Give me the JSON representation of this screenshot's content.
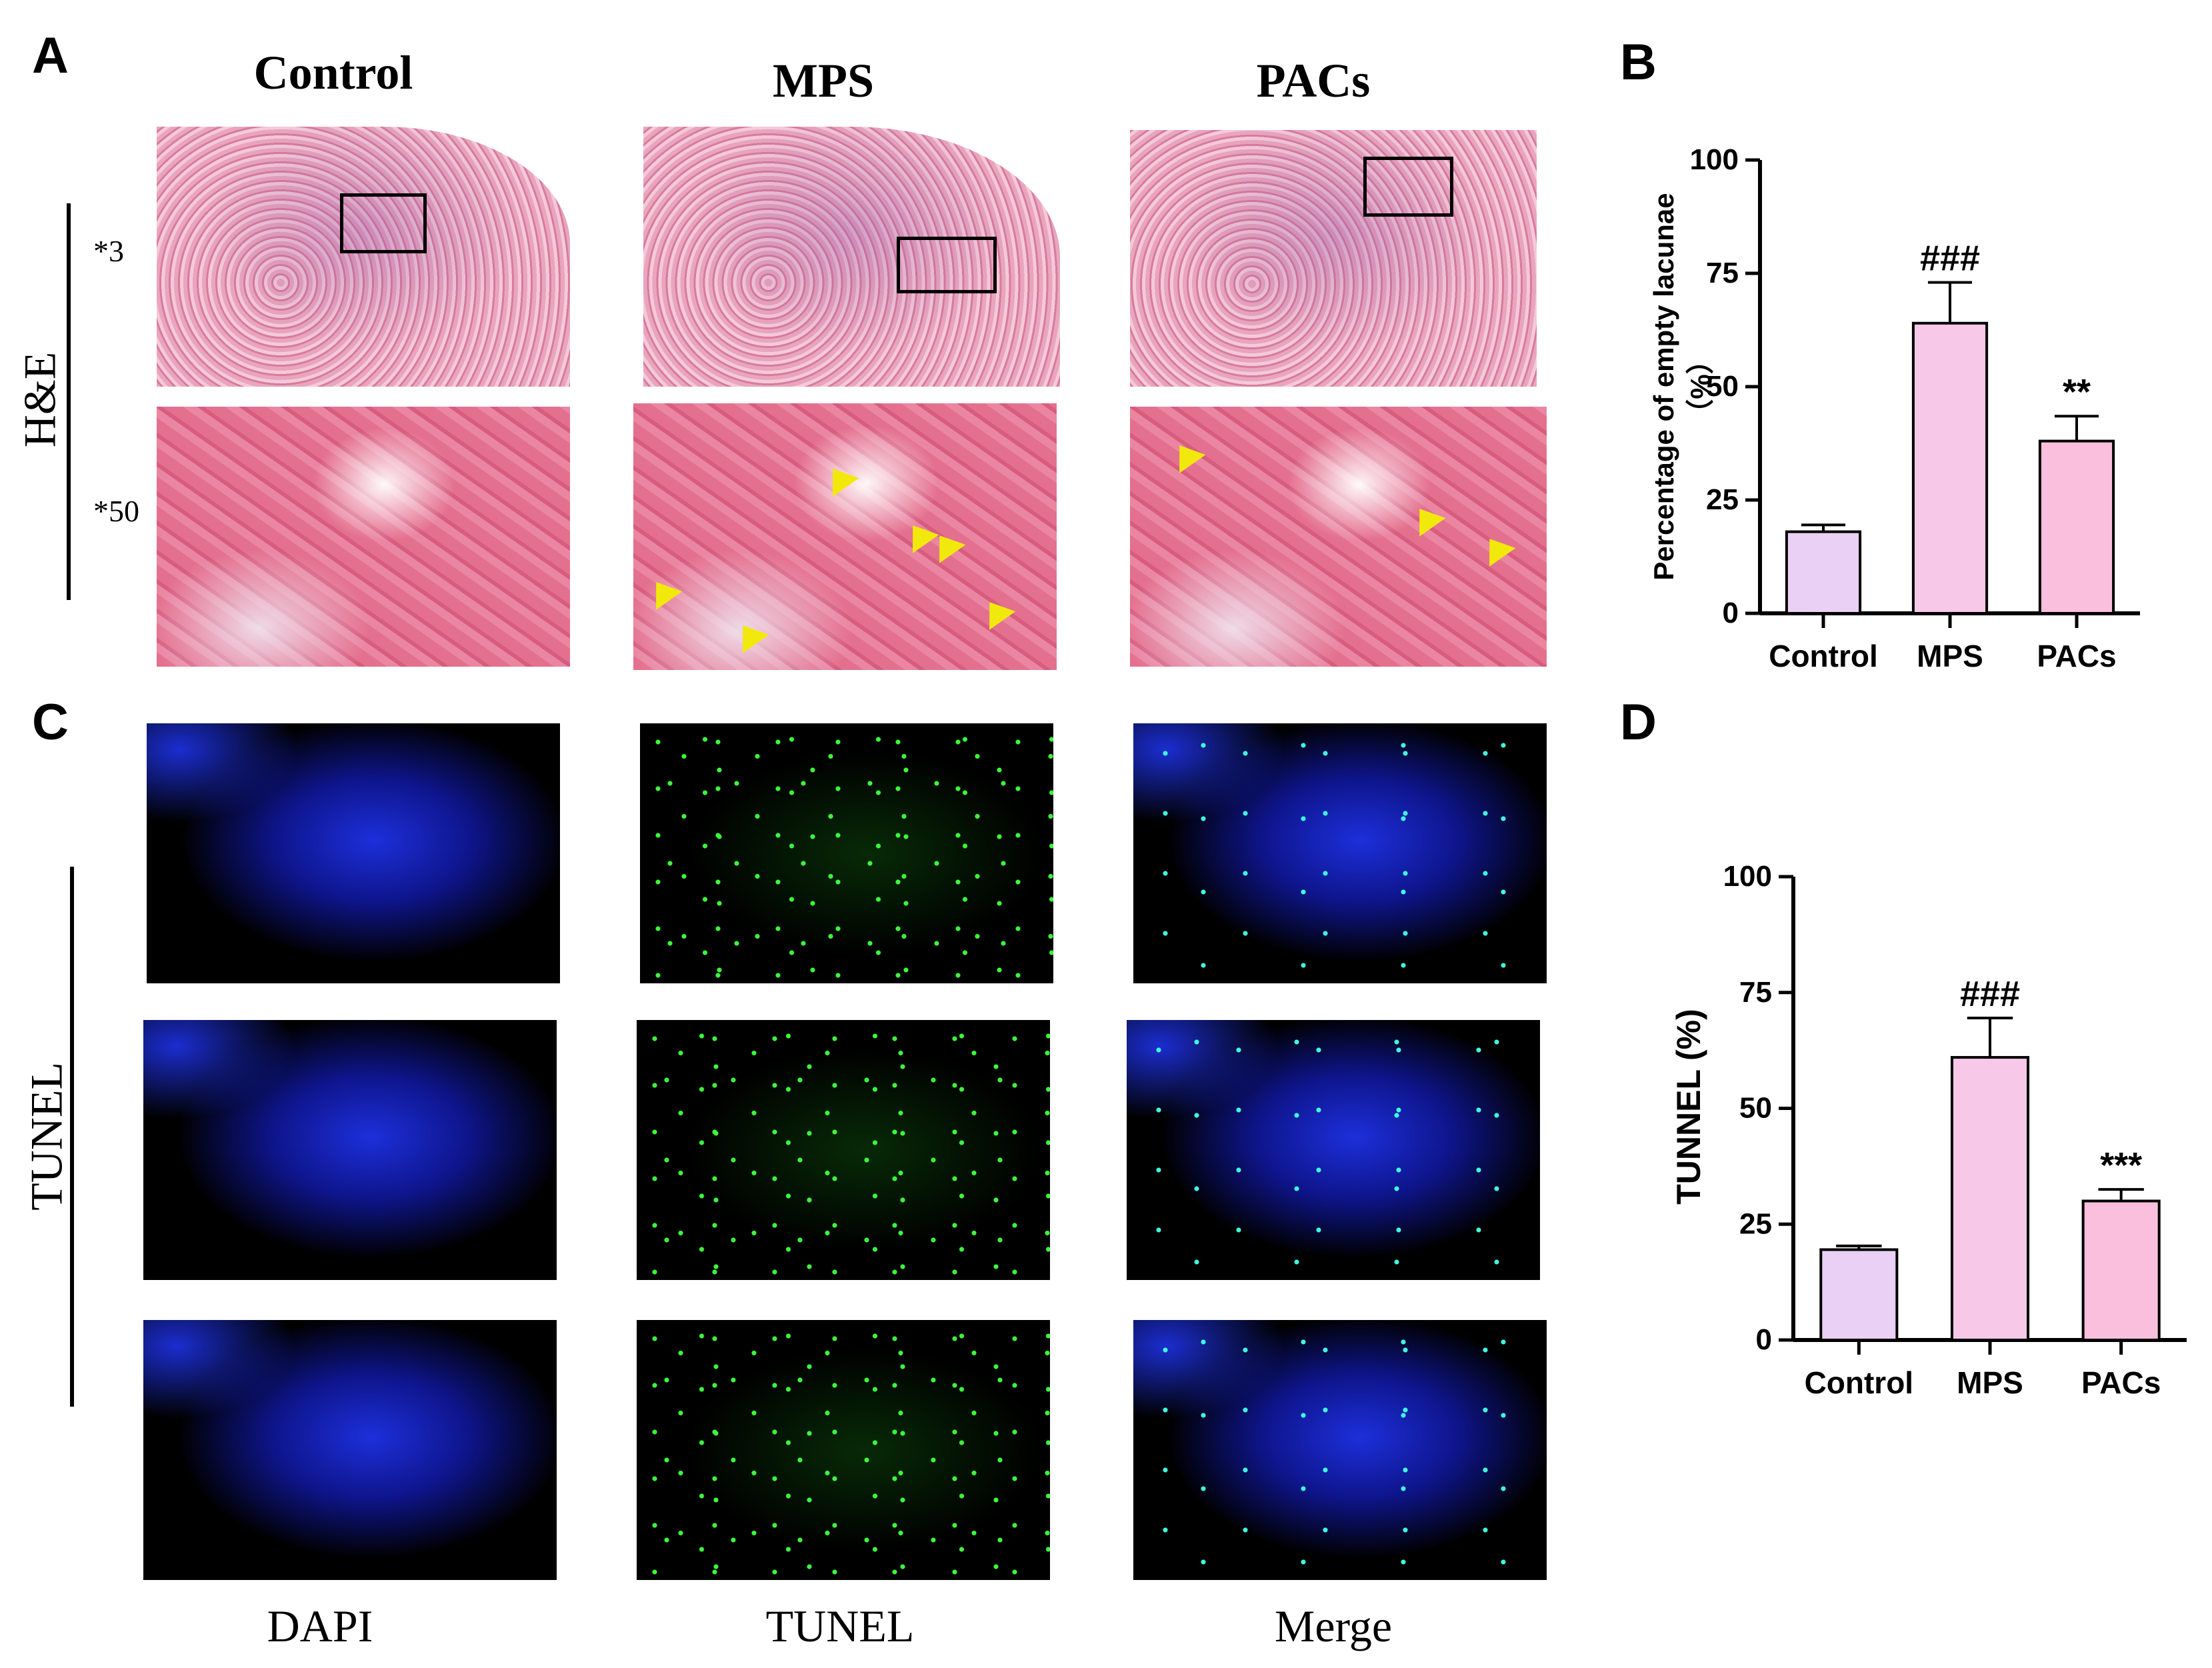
{
  "panels": {
    "A": "A",
    "B": "B",
    "C": "C",
    "D": "D"
  },
  "panel_a": {
    "columns": [
      "Control",
      "MPS",
      "PACs"
    ],
    "row_label": "H&E",
    "magnifications": [
      "*3",
      "*50"
    ]
  },
  "panel_c": {
    "row_label": "TUNEL",
    "columns": [
      "DAPI",
      "TUNEL",
      "Merge"
    ]
  },
  "colors": {
    "bar_control": "#ead0f5",
    "bar_mps": "#f7c8e8",
    "bar_pacs": "#f9bfdc",
    "arrow": "#f2e90c"
  },
  "chart_data": [
    {
      "type": "bar",
      "panel": "B",
      "categories": [
        "Control",
        "MPS",
        "PACs"
      ],
      "values": [
        18,
        64,
        38
      ],
      "errors": [
        1.5,
        9,
        5.5
      ],
      "annotations": [
        "",
        "###",
        "**"
      ],
      "ylabel_line1": "Percentage of empty lacunae",
      "ylabel_line2": "（%）",
      "ylim": [
        0,
        100
      ],
      "yticks": [
        0,
        25,
        50,
        75,
        100
      ]
    },
    {
      "type": "bar",
      "panel": "D",
      "categories": [
        "Control",
        "MPS",
        "PACs"
      ],
      "values": [
        19.5,
        61,
        30
      ],
      "errors": [
        0.8,
        8.5,
        2.5
      ],
      "annotations": [
        "",
        "###",
        "***"
      ],
      "ylabel": "TUNNEL (%)",
      "ylim": [
        0,
        100
      ],
      "yticks": [
        0,
        25,
        50,
        75,
        100
      ]
    }
  ]
}
